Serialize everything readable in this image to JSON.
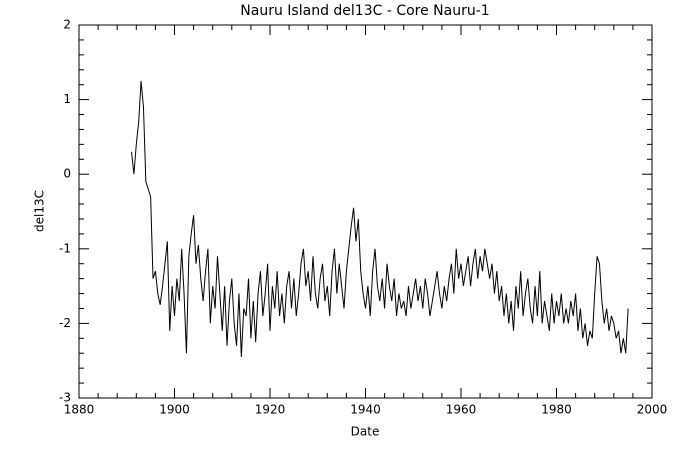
{
  "chart_data": {
    "type": "line",
    "title": "Nauru Island del13C - Core Nauru-1",
    "x_label": "Date",
    "y_label": "del13C",
    "xlim": [
      1880,
      2000
    ],
    "xticks": [
      1880,
      1900,
      1920,
      1940,
      1960,
      1980,
      2000
    ],
    "ylim": [
      -3,
      2
    ],
    "yticks": [
      -3,
      -2,
      -1,
      0,
      1,
      2
    ],
    "series": [
      {
        "color": "#000000",
        "x": [
          1891.0,
          1891.5,
          1892.0,
          1892.5,
          1893.0,
          1893.5,
          1894.0,
          1894.5,
          1895.0,
          1895.5,
          1896.0,
          1896.5,
          1897.0,
          1897.5,
          1898.0,
          1898.5,
          1899.0,
          1899.5,
          1900.0,
          1900.5,
          1901.0,
          1901.5,
          1902.0,
          1902.5,
          1903.0,
          1903.5,
          1904.0,
          1904.5,
          1905.0,
          1905.5,
          1906.0,
          1906.5,
          1907.0,
          1907.5,
          1908.0,
          1908.5,
          1909.0,
          1909.5,
          1910.0,
          1910.5,
          1911.0,
          1911.5,
          1912.0,
          1912.5,
          1913.0,
          1913.5,
          1914.0,
          1914.5,
          1915.0,
          1915.5,
          1916.0,
          1916.5,
          1917.0,
          1917.5,
          1918.0,
          1918.5,
          1919.0,
          1919.5,
          1920.0,
          1920.5,
          1921.0,
          1921.5,
          1922.0,
          1922.5,
          1923.0,
          1923.5,
          1924.0,
          1924.5,
          1925.0,
          1925.5,
          1926.0,
          1926.5,
          1927.0,
          1927.5,
          1928.0,
          1928.5,
          1929.0,
          1929.5,
          1930.0,
          1930.5,
          1931.0,
          1931.5,
          1932.0,
          1932.5,
          1933.0,
          1933.5,
          1934.0,
          1934.5,
          1935.0,
          1935.5,
          1936.0,
          1936.5,
          1937.0,
          1937.5,
          1938.0,
          1938.5,
          1939.0,
          1939.5,
          1940.0,
          1940.5,
          1941.0,
          1941.5,
          1942.0,
          1942.5,
          1943.0,
          1943.5,
          1944.0,
          1944.5,
          1945.0,
          1945.5,
          1946.0,
          1946.5,
          1947.0,
          1947.5,
          1948.0,
          1948.5,
          1949.0,
          1949.5,
          1950.0,
          1950.5,
          1951.0,
          1951.5,
          1952.0,
          1952.5,
          1953.0,
          1953.5,
          1954.0,
          1954.5,
          1955.0,
          1955.5,
          1956.0,
          1956.5,
          1957.0,
          1957.5,
          1958.0,
          1958.5,
          1959.0,
          1959.5,
          1960.0,
          1960.5,
          1961.0,
          1961.5,
          1962.0,
          1962.5,
          1963.0,
          1963.5,
          1964.0,
          1964.5,
          1965.0,
          1965.5,
          1966.0,
          1966.5,
          1967.0,
          1967.5,
          1968.0,
          1968.5,
          1969.0,
          1969.5,
          1970.0,
          1970.5,
          1971.0,
          1971.5,
          1972.0,
          1972.5,
          1973.0,
          1973.5,
          1974.0,
          1974.5,
          1975.0,
          1975.5,
          1976.0,
          1976.5,
          1977.0,
          1977.5,
          1978.0,
          1978.5,
          1979.0,
          1979.5,
          1980.0,
          1980.5,
          1981.0,
          1981.5,
          1982.0,
          1982.5,
          1983.0,
          1983.5,
          1984.0,
          1984.5,
          1985.0,
          1985.5,
          1986.0,
          1986.5,
          1987.0,
          1987.5,
          1988.0,
          1988.5,
          1989.0,
          1989.5,
          1990.0,
          1990.5,
          1991.0,
          1991.5,
          1992.0,
          1992.5,
          1993.0,
          1993.5,
          1994.0,
          1994.5,
          1995.0
        ],
        "values": [
          0.3,
          0.0,
          0.4,
          0.7,
          1.25,
          0.9,
          -0.1,
          -0.2,
          -0.3,
          -1.4,
          -1.3,
          -1.6,
          -1.75,
          -1.5,
          -1.2,
          -0.9,
          -2.1,
          -1.5,
          -1.9,
          -1.4,
          -1.7,
          -1.0,
          -1.6,
          -2.4,
          -1.1,
          -0.8,
          -0.55,
          -1.2,
          -0.95,
          -1.4,
          -1.7,
          -1.3,
          -1.0,
          -2.0,
          -1.5,
          -1.8,
          -1.1,
          -1.6,
          -2.1,
          -1.5,
          -2.3,
          -1.7,
          -1.4,
          -2.0,
          -2.3,
          -1.6,
          -2.45,
          -1.8,
          -1.9,
          -1.4,
          -2.2,
          -1.7,
          -2.25,
          -1.6,
          -1.3,
          -1.9,
          -1.6,
          -1.2,
          -2.1,
          -1.5,
          -1.8,
          -1.3,
          -1.9,
          -1.6,
          -2.0,
          -1.5,
          -1.3,
          -1.8,
          -1.4,
          -1.9,
          -1.6,
          -1.2,
          -1.0,
          -1.5,
          -1.3,
          -1.7,
          -1.1,
          -1.6,
          -1.8,
          -1.4,
          -1.2,
          -1.7,
          -1.5,
          -1.9,
          -1.3,
          -1.0,
          -1.6,
          -1.2,
          -1.5,
          -1.8,
          -1.3,
          -1.0,
          -0.7,
          -0.45,
          -0.9,
          -0.6,
          -1.3,
          -1.6,
          -1.8,
          -1.5,
          -1.9,
          -1.3,
          -1.0,
          -1.5,
          -1.7,
          -1.4,
          -1.8,
          -1.2,
          -1.5,
          -1.7,
          -1.4,
          -1.9,
          -1.6,
          -1.8,
          -1.7,
          -1.9,
          -1.5,
          -1.8,
          -1.6,
          -1.4,
          -1.7,
          -1.5,
          -1.8,
          -1.4,
          -1.6,
          -1.9,
          -1.7,
          -1.5,
          -1.3,
          -1.6,
          -1.8,
          -1.5,
          -1.7,
          -1.4,
          -1.2,
          -1.6,
          -1.0,
          -1.4,
          -1.2,
          -1.5,
          -1.3,
          -1.1,
          -1.5,
          -1.2,
          -1.0,
          -1.4,
          -1.1,
          -1.3,
          -1.0,
          -1.2,
          -1.4,
          -1.2,
          -1.6,
          -1.3,
          -1.7,
          -1.5,
          -1.9,
          -1.6,
          -2.0,
          -1.7,
          -2.1,
          -1.5,
          -1.8,
          -1.3,
          -1.9,
          -1.6,
          -1.4,
          -1.8,
          -2.0,
          -1.5,
          -1.9,
          -1.3,
          -2.0,
          -1.7,
          -1.9,
          -2.1,
          -1.6,
          -2.0,
          -1.7,
          -1.9,
          -1.6,
          -2.0,
          -1.8,
          -2.0,
          -1.7,
          -1.9,
          -1.6,
          -2.1,
          -1.8,
          -2.2,
          -2.0,
          -2.3,
          -2.1,
          -2.2,
          -1.6,
          -1.1,
          -1.2,
          -1.7,
          -2.0,
          -1.8,
          -2.1,
          -1.9,
          -2.0,
          -2.2,
          -2.1,
          -2.4,
          -2.2,
          -2.4,
          -1.8
        ]
      }
    ]
  }
}
